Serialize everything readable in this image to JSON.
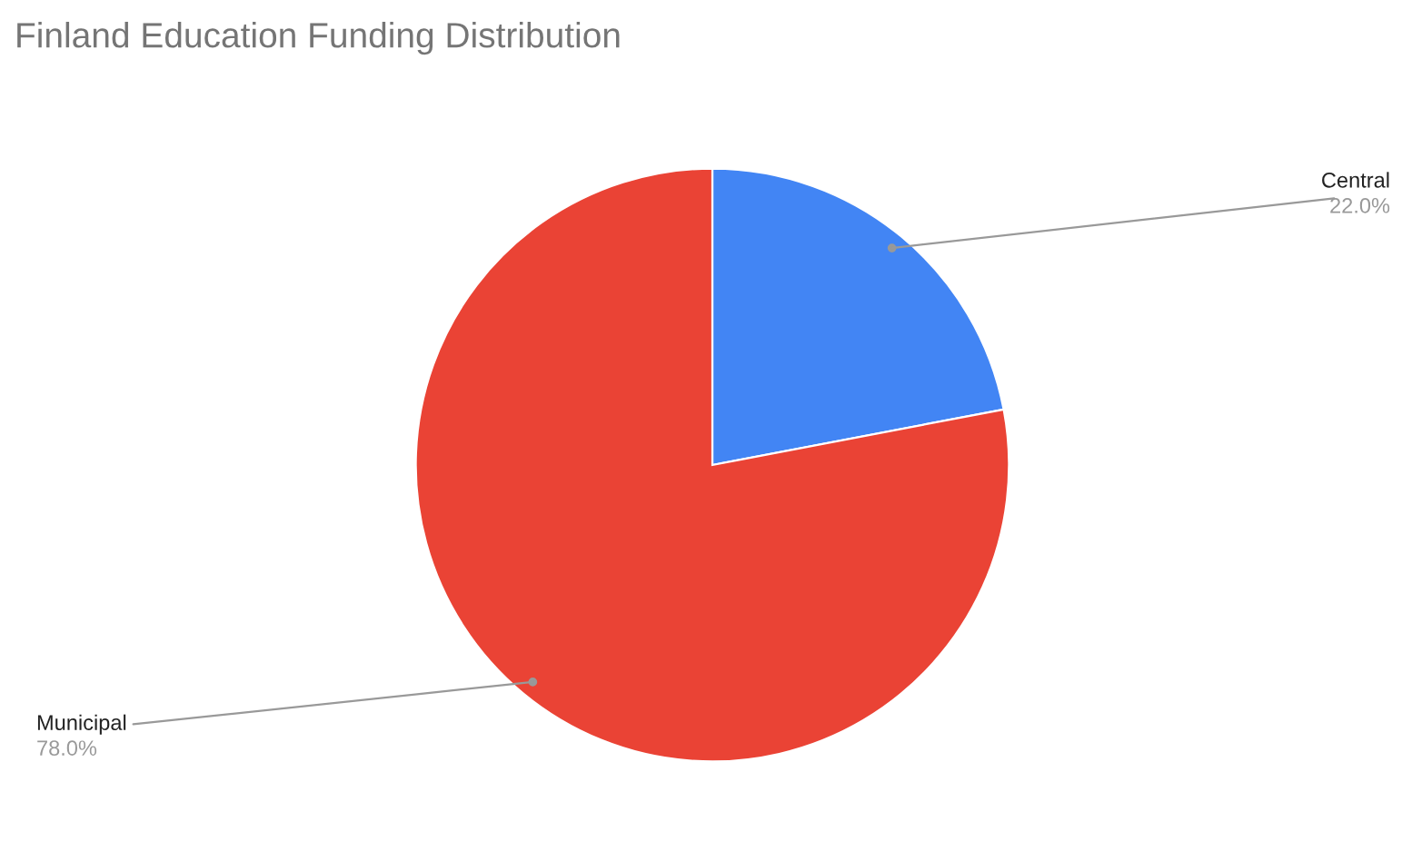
{
  "chart_data": {
    "type": "pie",
    "title": "Finland Education Funding Distribution",
    "categories": [
      "Central",
      "Municipal"
    ],
    "values": [
      22.0,
      78.0
    ],
    "colors": [
      "#4285f4",
      "#ea4335"
    ],
    "value_labels": [
      "22.0%",
      "78.0%"
    ],
    "legend": false
  }
}
